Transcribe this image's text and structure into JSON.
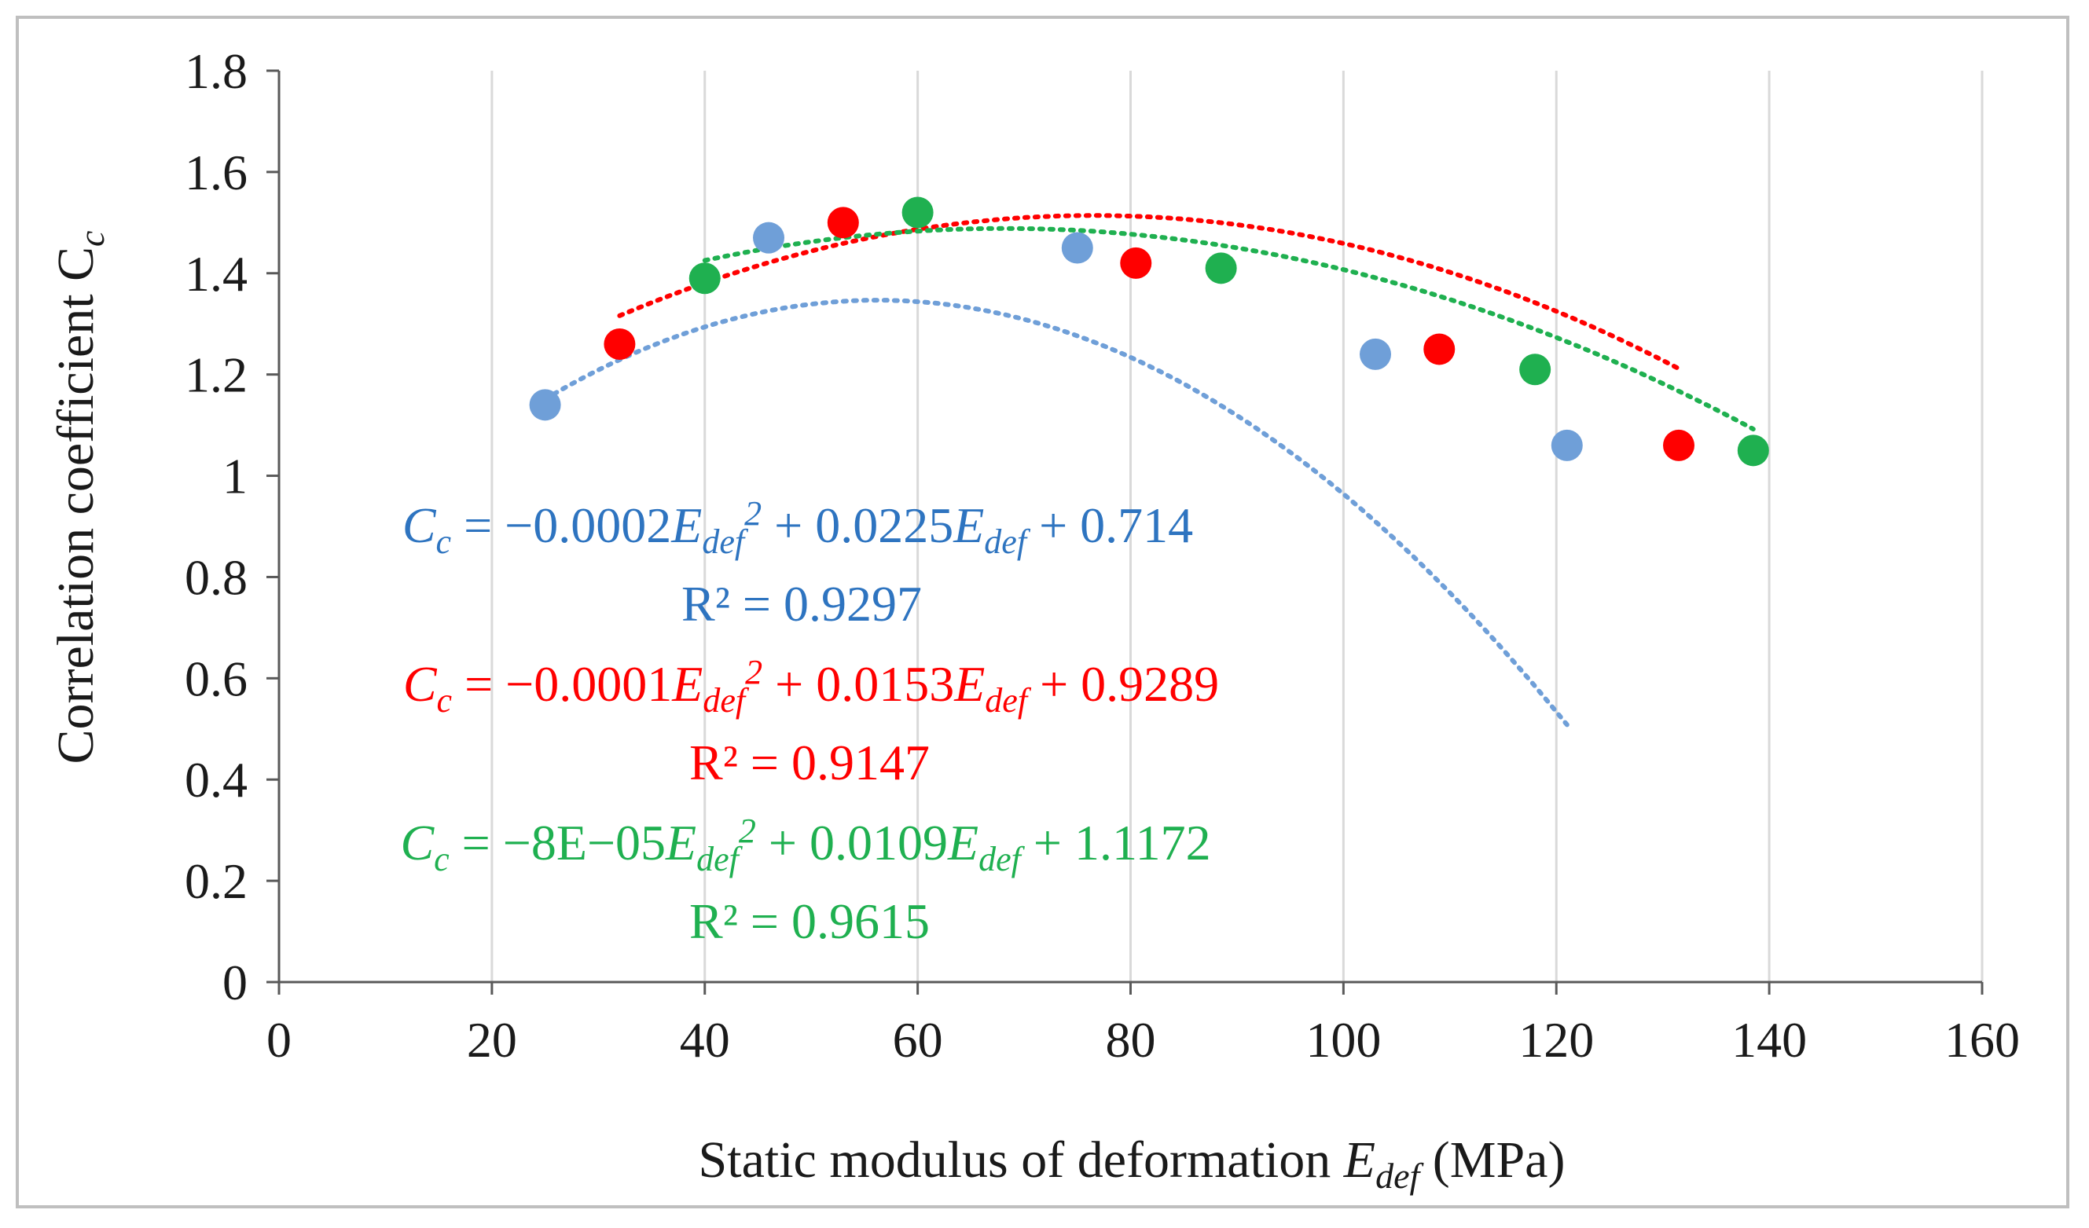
{
  "chart_data": {
    "type": "scatter",
    "title": "",
    "xlabel": {
      "prefix": "Static modulus of deformation ",
      "symbol": "E",
      "subscript": "def",
      "suffix": " (MPa)"
    },
    "ylabel": {
      "prefix": "Correlation coefficient C",
      "subscript": "c"
    },
    "xlim": [
      0,
      160
    ],
    "ylim": [
      0,
      1.8
    ],
    "x_ticks": [
      0,
      20,
      40,
      60,
      80,
      100,
      120,
      140,
      160
    ],
    "y_ticks": [
      0,
      0.2,
      0.4,
      0.6,
      0.8,
      1,
      1.2,
      1.4,
      1.6,
      1.8
    ],
    "y_tick_labels": [
      "0",
      "0.2",
      "0.4",
      "0.6",
      "0.8",
      "1",
      "1.2",
      "1.4",
      "1.6",
      "1.8"
    ],
    "grid": "vertical",
    "series": [
      {
        "name": "blue",
        "color": "#6f9fd8",
        "text_color": "#2e74c0",
        "points": [
          {
            "x": 25,
            "y": 1.14
          },
          {
            "x": 46,
            "y": 1.47
          },
          {
            "x": 75,
            "y": 1.45
          },
          {
            "x": 103,
            "y": 1.24
          },
          {
            "x": 121,
            "y": 1.06
          }
        ],
        "trendline": {
          "type": "polynomial",
          "order": 2,
          "a": -0.0002,
          "b": 0.0225,
          "c": 0.714,
          "x_range": [
            25,
            121
          ]
        },
        "equation": {
          "lhs": "C",
          "lhs_sub": "c",
          "part1": " = −0.0002",
          "var": "E",
          "var_sub": "def",
          "sup": "2",
          "part2": " + 0.0225",
          "part3": " + 0.714"
        },
        "r2": "R² = 0.9297"
      },
      {
        "name": "red",
        "color": "#ff0000",
        "text_color": "#ff0000",
        "points": [
          {
            "x": 32,
            "y": 1.26
          },
          {
            "x": 53,
            "y": 1.5
          },
          {
            "x": 80.5,
            "y": 1.42
          },
          {
            "x": 109,
            "y": 1.25
          },
          {
            "x": 131.5,
            "y": 1.06
          }
        ],
        "trendline": {
          "type": "polynomial",
          "order": 2,
          "a": -0.0001,
          "b": 0.0153,
          "c": 0.9289,
          "x_range": [
            32,
            131.5
          ]
        },
        "equation": {
          "lhs": "C",
          "lhs_sub": "c",
          "part1": " = −0.0001",
          "var": "E",
          "var_sub": "def",
          "sup": "2",
          "part2": " + 0.0153",
          "part3": " + 0.9289"
        },
        "r2": "R² = 0.9147"
      },
      {
        "name": "green",
        "color": "#1fb050",
        "text_color": "#1fb050",
        "points": [
          {
            "x": 40,
            "y": 1.39
          },
          {
            "x": 60,
            "y": 1.52
          },
          {
            "x": 88.5,
            "y": 1.41
          },
          {
            "x": 118,
            "y": 1.21
          },
          {
            "x": 138.5,
            "y": 1.05
          }
        ],
        "trendline": {
          "type": "polynomial",
          "order": 2,
          "a": -8e-05,
          "b": 0.0109,
          "c": 1.1172,
          "x_range": [
            40,
            138.5
          ]
        },
        "equation": {
          "lhs": "C",
          "lhs_sub": "c",
          "part1": " = −8E−05",
          "var": "E",
          "var_sub": "def",
          "sup": "2",
          "part2": " + 0.0109",
          "part3": " + 1.1172"
        },
        "r2": "R² = 0.9615"
      }
    ]
  }
}
